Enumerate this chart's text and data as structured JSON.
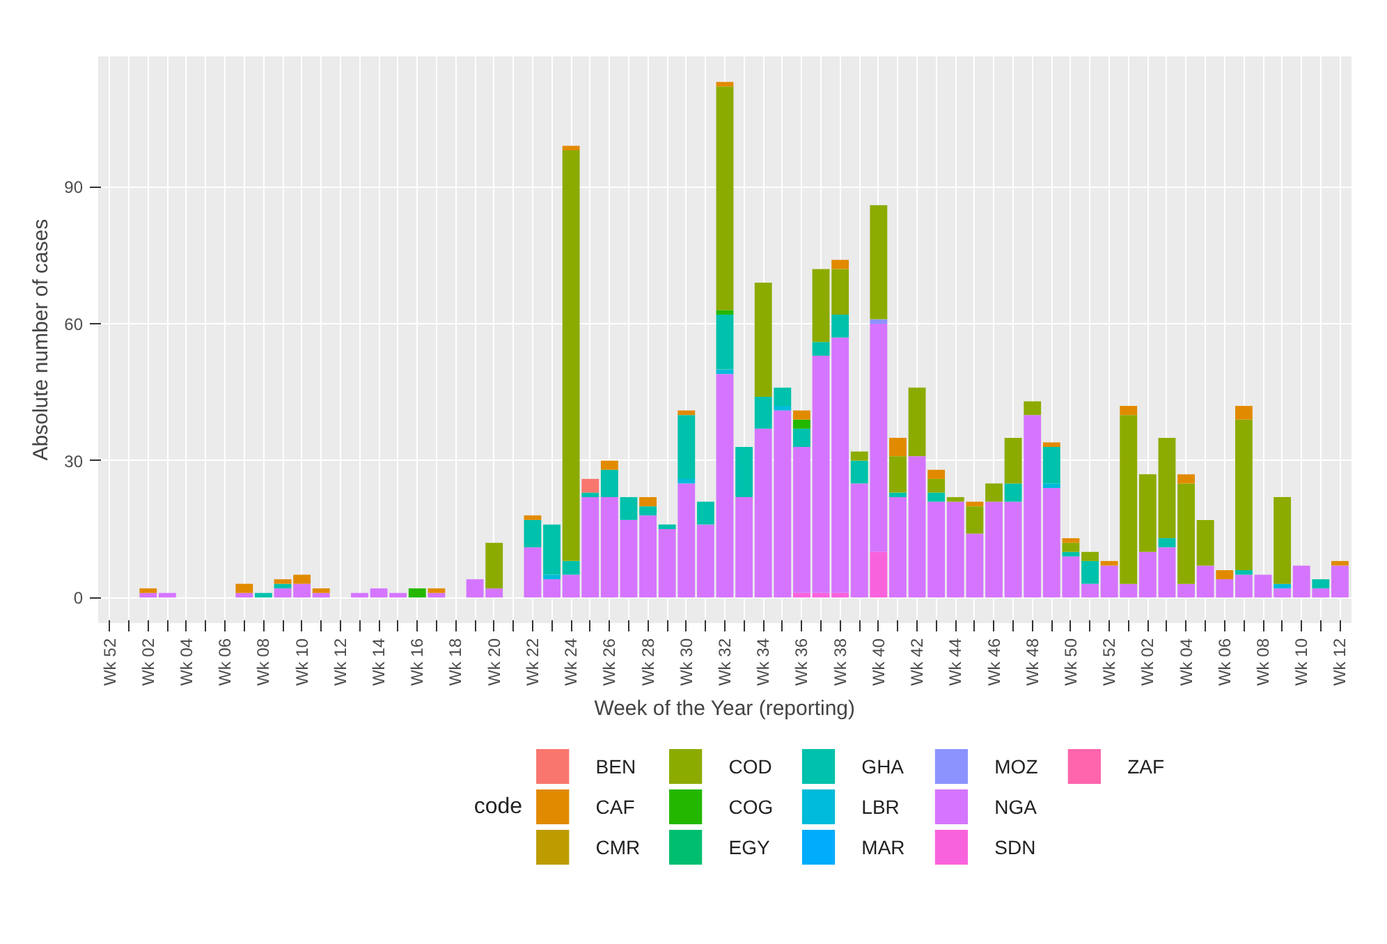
{
  "chart_data": {
    "type": "bar",
    "stacked": true,
    "xlabel": "Week of the Year (reporting)",
    "ylabel": "Absolute number of cases",
    "legend_title": "code",
    "legend": "bottom",
    "grid": true,
    "categories": [
      "Wk 52",
      null,
      "Wk 02",
      null,
      "Wk 04",
      null,
      "Wk 06",
      null,
      "Wk 08",
      null,
      "Wk 10",
      null,
      "Wk 12",
      null,
      "Wk 14",
      null,
      "Wk 16",
      null,
      "Wk 18",
      null,
      "Wk 20",
      null,
      "Wk 22",
      null,
      "Wk 24",
      null,
      "Wk 26",
      null,
      "Wk 28",
      null,
      "Wk 30",
      null,
      "Wk 32",
      null,
      "Wk 34",
      null,
      "Wk 36",
      null,
      "Wk 38",
      null,
      "Wk 40",
      null,
      "Wk 42",
      null,
      "Wk 44",
      null,
      "Wk 46",
      null,
      "Wk 48",
      null,
      "Wk 50",
      null,
      "Wk 52",
      null,
      "Wk 02",
      null,
      "Wk 04",
      null,
      "Wk 06",
      null,
      "Wk 08",
      null,
      "Wk 10",
      null,
      "Wk 12"
    ],
    "ylim": [
      -5.6,
      118.6
    ],
    "yticks": [
      0,
      30,
      60,
      90
    ],
    "series": [
      {
        "name": "ZAF",
        "color": "#ff65ac",
        "values": [
          null,
          null,
          null,
          null,
          null,
          null,
          null,
          null,
          null,
          null,
          null,
          null,
          null,
          null,
          null,
          null,
          null,
          null,
          null,
          null,
          null,
          null,
          null,
          null,
          null,
          null,
          null,
          null,
          null,
          null,
          null,
          null,
          null,
          null,
          null,
          null,
          null,
          null,
          null,
          null,
          null,
          null,
          null,
          null,
          null,
          null,
          null,
          null,
          null,
          null,
          null,
          null,
          null,
          null,
          null,
          null,
          null,
          null,
          null,
          null,
          null,
          null,
          null,
          null,
          null
        ]
      },
      {
        "name": "SDN",
        "color": "#f962dd",
        "values": [
          null,
          null,
          null,
          null,
          null,
          null,
          null,
          null,
          null,
          null,
          null,
          null,
          null,
          null,
          null,
          null,
          null,
          null,
          null,
          null,
          null,
          null,
          null,
          null,
          null,
          null,
          null,
          null,
          null,
          null,
          null,
          null,
          null,
          null,
          null,
          null,
          1,
          1,
          1,
          null,
          10,
          null,
          null,
          null,
          null,
          null,
          null,
          null,
          null,
          null,
          null,
          null,
          null,
          null,
          null,
          null,
          null,
          null,
          null,
          null,
          null,
          null,
          null,
          null,
          null
        ]
      },
      {
        "name": "NGA",
        "color": "#d575fe",
        "values": [
          null,
          null,
          1,
          1,
          null,
          null,
          null,
          1,
          null,
          2,
          3,
          1,
          null,
          1,
          2,
          1,
          null,
          1,
          null,
          4,
          2,
          null,
          11,
          4,
          5,
          22,
          22,
          17,
          18,
          15,
          25,
          16,
          49,
          22,
          37,
          41,
          32,
          52,
          56,
          25,
          50,
          22,
          31,
          21,
          21,
          14,
          21,
          21,
          40,
          24,
          9,
          3,
          7,
          3,
          10,
          11,
          3,
          7,
          4,
          5,
          5,
          2,
          7,
          2,
          7
        ]
      },
      {
        "name": "MOZ",
        "color": "#8b93ff",
        "values": [
          null,
          null,
          null,
          null,
          null,
          null,
          null,
          null,
          null,
          null,
          null,
          null,
          null,
          null,
          null,
          null,
          null,
          null,
          null,
          null,
          null,
          null,
          null,
          null,
          null,
          null,
          null,
          null,
          null,
          null,
          null,
          null,
          null,
          null,
          null,
          null,
          null,
          null,
          null,
          null,
          1,
          null,
          null,
          null,
          null,
          null,
          null,
          null,
          null,
          null,
          null,
          null,
          null,
          null,
          null,
          null,
          null,
          null,
          null,
          null,
          null,
          null,
          null,
          null,
          null
        ]
      },
      {
        "name": "MAR",
        "color": "#00acfc",
        "values": [
          null,
          null,
          null,
          null,
          null,
          null,
          null,
          null,
          null,
          null,
          null,
          null,
          null,
          null,
          null,
          null,
          null,
          null,
          null,
          null,
          null,
          null,
          null,
          null,
          null,
          null,
          null,
          null,
          null,
          null,
          null,
          null,
          null,
          null,
          null,
          null,
          null,
          null,
          null,
          null,
          null,
          null,
          null,
          null,
          null,
          null,
          null,
          null,
          null,
          null,
          null,
          null,
          null,
          null,
          null,
          null,
          null,
          null,
          null,
          null,
          null,
          null,
          null,
          null,
          null
        ]
      },
      {
        "name": "LBR",
        "color": "#00bbda",
        "values": [
          null,
          null,
          null,
          null,
          null,
          null,
          null,
          null,
          null,
          null,
          null,
          null,
          null,
          null,
          null,
          null,
          null,
          null,
          null,
          null,
          null,
          null,
          null,
          1,
          null,
          null,
          null,
          null,
          null,
          null,
          1,
          null,
          1,
          null,
          null,
          1,
          null,
          null,
          null,
          null,
          null,
          null,
          null,
          null,
          null,
          null,
          null,
          null,
          null,
          1,
          null,
          null,
          null,
          null,
          null,
          null,
          null,
          null,
          null,
          null,
          null,
          1,
          null,
          null,
          null
        ]
      },
      {
        "name": "GHA",
        "color": "#00c1ab",
        "values": [
          null,
          null,
          null,
          null,
          null,
          null,
          null,
          null,
          1,
          1,
          null,
          null,
          null,
          null,
          null,
          null,
          null,
          null,
          null,
          null,
          null,
          null,
          6,
          11,
          3,
          1,
          6,
          5,
          2,
          1,
          14,
          5,
          12,
          11,
          7,
          4,
          4,
          3,
          5,
          5,
          null,
          1,
          null,
          2,
          null,
          null,
          null,
          4,
          null,
          8,
          1,
          5,
          null,
          null,
          null,
          2,
          null,
          null,
          null,
          1,
          null,
          null,
          null,
          2,
          null
        ]
      },
      {
        "name": "EGY",
        "color": "#00be70",
        "values": [
          null,
          null,
          null,
          null,
          null,
          null,
          null,
          null,
          null,
          null,
          null,
          null,
          null,
          null,
          null,
          null,
          null,
          null,
          null,
          null,
          null,
          null,
          null,
          null,
          null,
          null,
          null,
          null,
          null,
          null,
          null,
          null,
          null,
          null,
          null,
          null,
          null,
          null,
          null,
          null,
          null,
          null,
          null,
          null,
          null,
          null,
          null,
          null,
          null,
          null,
          null,
          null,
          null,
          null,
          null,
          null,
          null,
          null,
          null,
          null,
          null,
          null,
          null,
          null,
          null
        ]
      },
      {
        "name": "COG",
        "color": "#24b700",
        "values": [
          null,
          null,
          null,
          null,
          null,
          null,
          null,
          null,
          null,
          null,
          null,
          null,
          null,
          null,
          null,
          null,
          2,
          null,
          null,
          null,
          null,
          null,
          null,
          null,
          null,
          null,
          null,
          null,
          null,
          null,
          null,
          null,
          1,
          null,
          null,
          null,
          2,
          null,
          null,
          null,
          null,
          null,
          null,
          null,
          null,
          null,
          null,
          null,
          null,
          null,
          null,
          null,
          null,
          null,
          null,
          null,
          null,
          null,
          null,
          null,
          null,
          null,
          null,
          null,
          null
        ]
      },
      {
        "name": "COD",
        "color": "#8cab00",
        "values": [
          null,
          null,
          null,
          null,
          null,
          null,
          null,
          null,
          null,
          null,
          null,
          null,
          null,
          null,
          null,
          null,
          null,
          null,
          null,
          null,
          10,
          null,
          null,
          null,
          90,
          null,
          null,
          null,
          null,
          null,
          null,
          null,
          49,
          null,
          25,
          null,
          null,
          16,
          10,
          2,
          25,
          8,
          15,
          3,
          1,
          6,
          4,
          10,
          3,
          null,
          2,
          2,
          null,
          37,
          17,
          22,
          22,
          10,
          null,
          33,
          null,
          19,
          null,
          null,
          null
        ]
      },
      {
        "name": "CMR",
        "color": "#be9c00",
        "values": [
          null,
          null,
          null,
          null,
          null,
          null,
          null,
          null,
          null,
          null,
          null,
          null,
          null,
          null,
          null,
          null,
          null,
          null,
          null,
          null,
          null,
          null,
          null,
          null,
          null,
          null,
          null,
          null,
          null,
          null,
          null,
          null,
          null,
          null,
          null,
          null,
          null,
          null,
          null,
          null,
          null,
          null,
          null,
          null,
          null,
          null,
          null,
          null,
          null,
          null,
          null,
          null,
          null,
          null,
          null,
          null,
          null,
          null,
          null,
          null,
          null,
          null,
          null,
          null,
          null
        ]
      },
      {
        "name": "CAF",
        "color": "#e18a00",
        "values": [
          null,
          null,
          1,
          null,
          null,
          null,
          null,
          2,
          null,
          1,
          2,
          1,
          null,
          null,
          null,
          null,
          null,
          1,
          null,
          null,
          null,
          null,
          1,
          null,
          1,
          null,
          2,
          null,
          2,
          null,
          1,
          null,
          1,
          null,
          null,
          null,
          2,
          null,
          2,
          null,
          null,
          4,
          null,
          2,
          null,
          1,
          null,
          null,
          null,
          1,
          1,
          null,
          1,
          2,
          null,
          null,
          2,
          null,
          2,
          3,
          null,
          null,
          null,
          null,
          1
        ]
      },
      {
        "name": "BEN",
        "color": "#f8766d",
        "values": [
          null,
          null,
          null,
          null,
          null,
          null,
          null,
          null,
          null,
          null,
          null,
          null,
          null,
          null,
          null,
          null,
          null,
          null,
          null,
          null,
          null,
          null,
          null,
          null,
          null,
          3,
          null,
          null,
          null,
          null,
          null,
          null,
          null,
          null,
          null,
          null,
          null,
          null,
          null,
          null,
          null,
          null,
          null,
          null,
          null,
          null,
          null,
          null,
          null,
          null,
          null,
          null,
          null,
          null,
          null,
          null,
          null,
          null,
          null,
          null,
          null,
          null,
          null,
          null,
          null
        ]
      }
    ]
  }
}
